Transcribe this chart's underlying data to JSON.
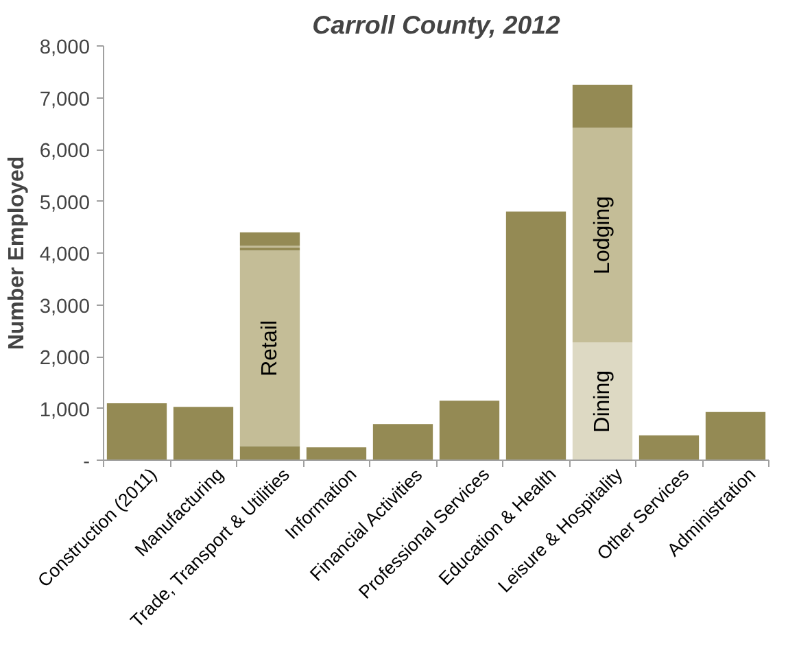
{
  "chart_data": {
    "type": "bar",
    "title": "Carroll County, 2012",
    "ylabel": "Number Employed",
    "stacked": true,
    "categories": [
      "Construction (2011)",
      "Manufacturing",
      "Trade, Transport & Utilities",
      "Information",
      "Financial Activities",
      "Professional Services",
      "Education & Health",
      "Leisure & Hospitality",
      "Other Services",
      "Administration"
    ],
    "series": [
      {
        "color": "#948a54",
        "values": [
          1100,
          1030,
          270,
          250,
          700,
          1150,
          4800,
          null,
          480,
          930
        ]
      },
      {
        "name": "Dining",
        "color": "#ddd9c3",
        "values": [
          null,
          null,
          null,
          null,
          null,
          null,
          null,
          2270,
          null,
          null
        ]
      },
      {
        "name": "Retail",
        "color": "#c4bd97",
        "values": [
          null,
          null,
          3780,
          null,
          null,
          null,
          null,
          null,
          null,
          null
        ]
      },
      {
        "name": "Lodging",
        "color": "#c4bd97",
        "values": [
          null,
          null,
          null,
          null,
          null,
          null,
          null,
          4150,
          null,
          null
        ]
      },
      {
        "color": "#948a54",
        "values": [
          null,
          null,
          60,
          null,
          null,
          null,
          null,
          null,
          null,
          null
        ]
      },
      {
        "color": "#c4bd97",
        "values": [
          null,
          null,
          30,
          null,
          null,
          null,
          null,
          null,
          null,
          null
        ]
      },
      {
        "color": "#948a54",
        "values": [
          null,
          null,
          260,
          null,
          null,
          null,
          null,
          830,
          null,
          null
        ]
      }
    ],
    "ylim": [
      0,
      8000
    ],
    "yticks": [
      {
        "value": 0,
        "label": "-"
      },
      {
        "value": 1000,
        "label": "1,000"
      },
      {
        "value": 2000,
        "label": "2,000"
      },
      {
        "value": 3000,
        "label": "3,000"
      },
      {
        "value": 4000,
        "label": "4,000"
      },
      {
        "value": 5000,
        "label": "5,000"
      },
      {
        "value": 6000,
        "label": "6,000"
      },
      {
        "value": 7000,
        "label": "7,000"
      },
      {
        "value": 8000,
        "label": "8,000"
      }
    ],
    "grid": false
  }
}
